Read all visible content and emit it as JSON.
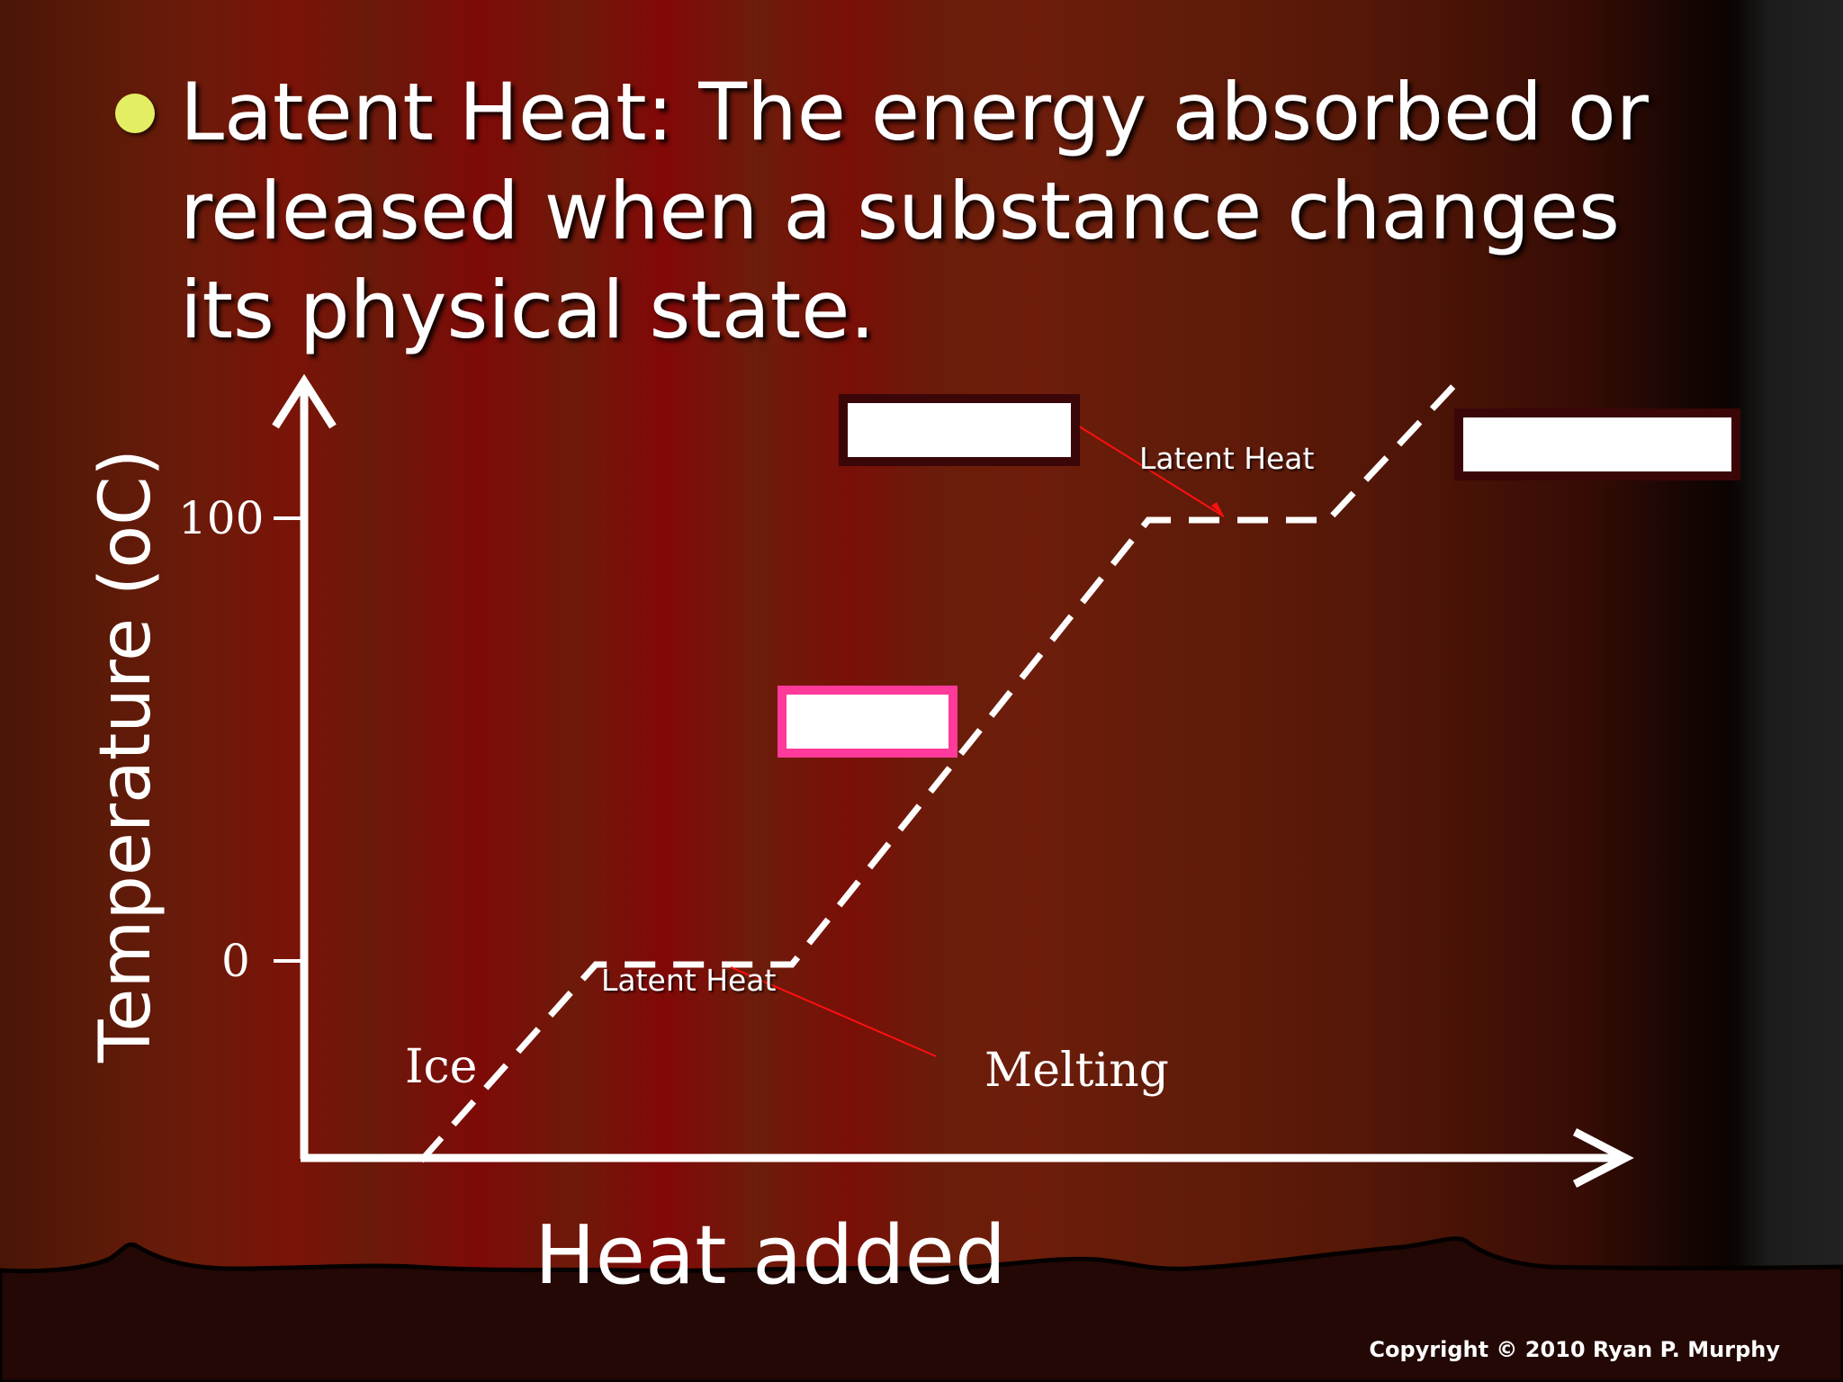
{
  "slide": {
    "bullet_text": "Latent Heat: The energy absorbed or released when a substance changes its physical state.",
    "bullet_color": "#e3ee62",
    "background_color": "#6a1a0a",
    "copyright": "Copyright © 2010 Ryan P. Murphy"
  },
  "diagram": {
    "y_axis_label": "Temperature (oC)",
    "x_axis_label": "Heat added",
    "y_ticks": [
      "100",
      "0"
    ],
    "labels": {
      "ice": "Ice",
      "melting": "Melting",
      "latent_heat_low": "Latent Heat",
      "latent_heat_high": "Latent Heat"
    },
    "answer_boxes": [
      {
        "name": "upper-left-answer-box",
        "border_color": "#3a0608"
      },
      {
        "name": "upper-right-answer-box",
        "border_color": "#3a0608"
      },
      {
        "name": "middle-answer-box",
        "border_color": "#ff3a9a"
      }
    ],
    "line_color": "#ffffff",
    "pointer_color": "#ff1010"
  }
}
